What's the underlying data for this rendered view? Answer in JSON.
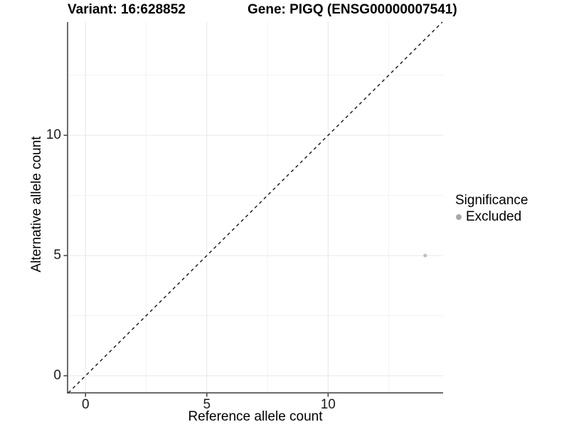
{
  "titles": {
    "variant": "Variant: 16:628852",
    "gene": "Gene: PIGQ (ENSG00000007541)"
  },
  "chart_data": {
    "type": "scatter",
    "title": "Variant: 16:628852 | Gene: PIGQ (ENSG00000007541)",
    "xlabel": "Reference allele count",
    "ylabel": "Alternative allele count",
    "xlim": [
      -0.74,
      14.74
    ],
    "ylim": [
      -0.71,
      14.71
    ],
    "x_major_ticks": [
      0,
      5,
      10
    ],
    "y_major_ticks": [
      0,
      5,
      10
    ],
    "x_minor_ticks": [
      2.5,
      7.5,
      12.5
    ],
    "y_minor_ticks": [
      2.5,
      7.5,
      12.5
    ],
    "grid": true,
    "series": [
      {
        "name": "Excluded",
        "color": "#c0c0c0",
        "point_radius": 2.6,
        "points": [
          {
            "x": 14,
            "y": 5
          }
        ]
      }
    ],
    "reference_line": {
      "type": "identity",
      "style": "dashed",
      "color": "#111111"
    },
    "legend": {
      "title": "Significance",
      "position": "right",
      "items": [
        {
          "label": "Excluded",
          "color": "#a8a8a8"
        }
      ]
    }
  },
  "colors": {
    "background": "#ffffff",
    "axis_line": "#3c3c3c",
    "grid_major": "#e6e6e6",
    "grid_minor": "#f2f2f2",
    "tick_text": "#1a1a1a"
  }
}
